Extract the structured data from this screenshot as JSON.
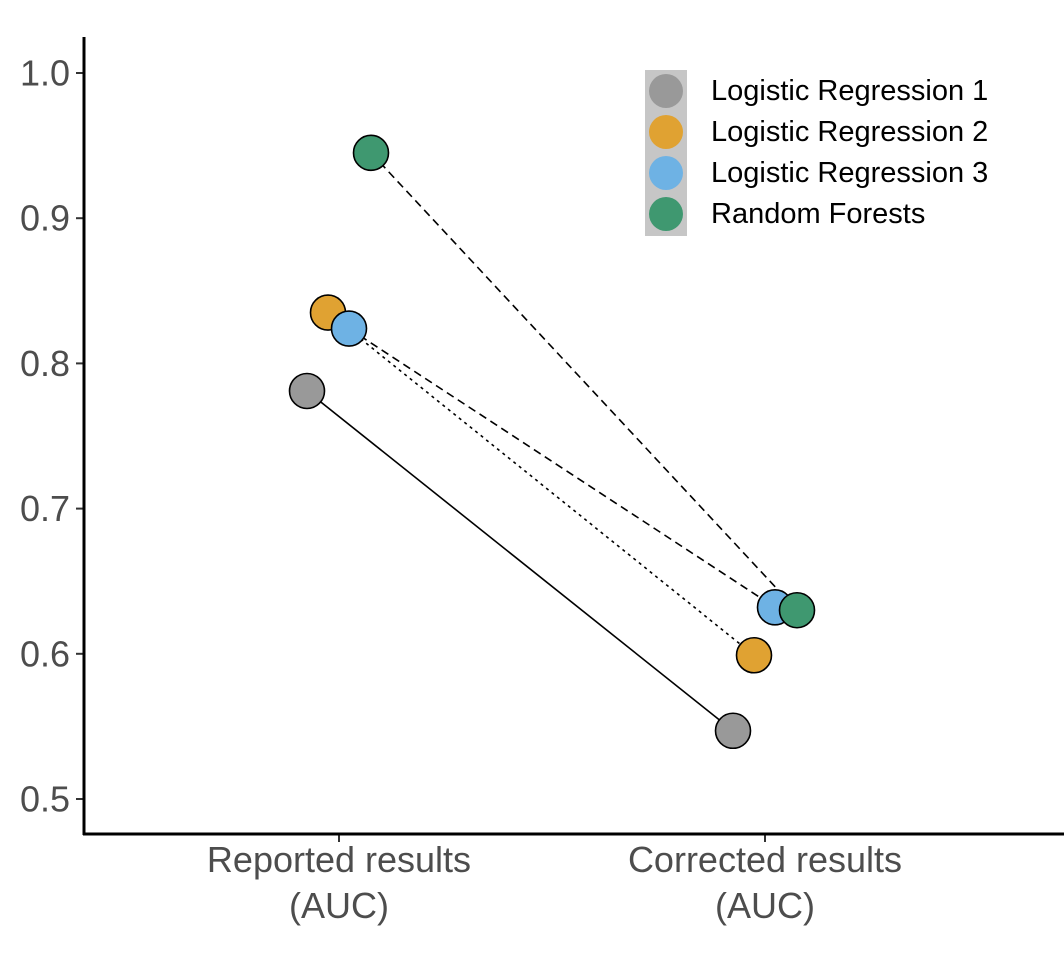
{
  "chart_data": {
    "type": "scatter",
    "title": "",
    "xlabel": "",
    "ylabel": "",
    "categories": [
      [
        "Reported results",
        "(AUC)"
      ],
      [
        "Corrected results",
        "(AUC)"
      ]
    ],
    "ylim": [
      0.475,
      1.025
    ],
    "yticks": [
      0.5,
      0.6,
      0.7,
      0.8,
      0.9,
      1.0
    ],
    "ytick_labels": [
      "0.5",
      "0.6",
      "0.7",
      "0.8",
      "0.9",
      "1.0"
    ],
    "grid": false,
    "legend_position": "top-right",
    "series": [
      {
        "name": "Logistic Regression 1",
        "color": "#999999",
        "line_style": "solid",
        "values": [
          0.781,
          0.547
        ]
      },
      {
        "name": "Logistic Regression 2",
        "color": "#E0A232",
        "line_style": "dotted",
        "values": [
          0.835,
          0.599
        ]
      },
      {
        "name": "Logistic Regression 3",
        "color": "#6EB2E4",
        "line_style": "dashed",
        "values": [
          0.824,
          0.632
        ]
      },
      {
        "name": "Random Forests",
        "color": "#3F9870",
        "line_style": "dashed",
        "values": [
          0.945,
          0.63
        ]
      }
    ]
  }
}
